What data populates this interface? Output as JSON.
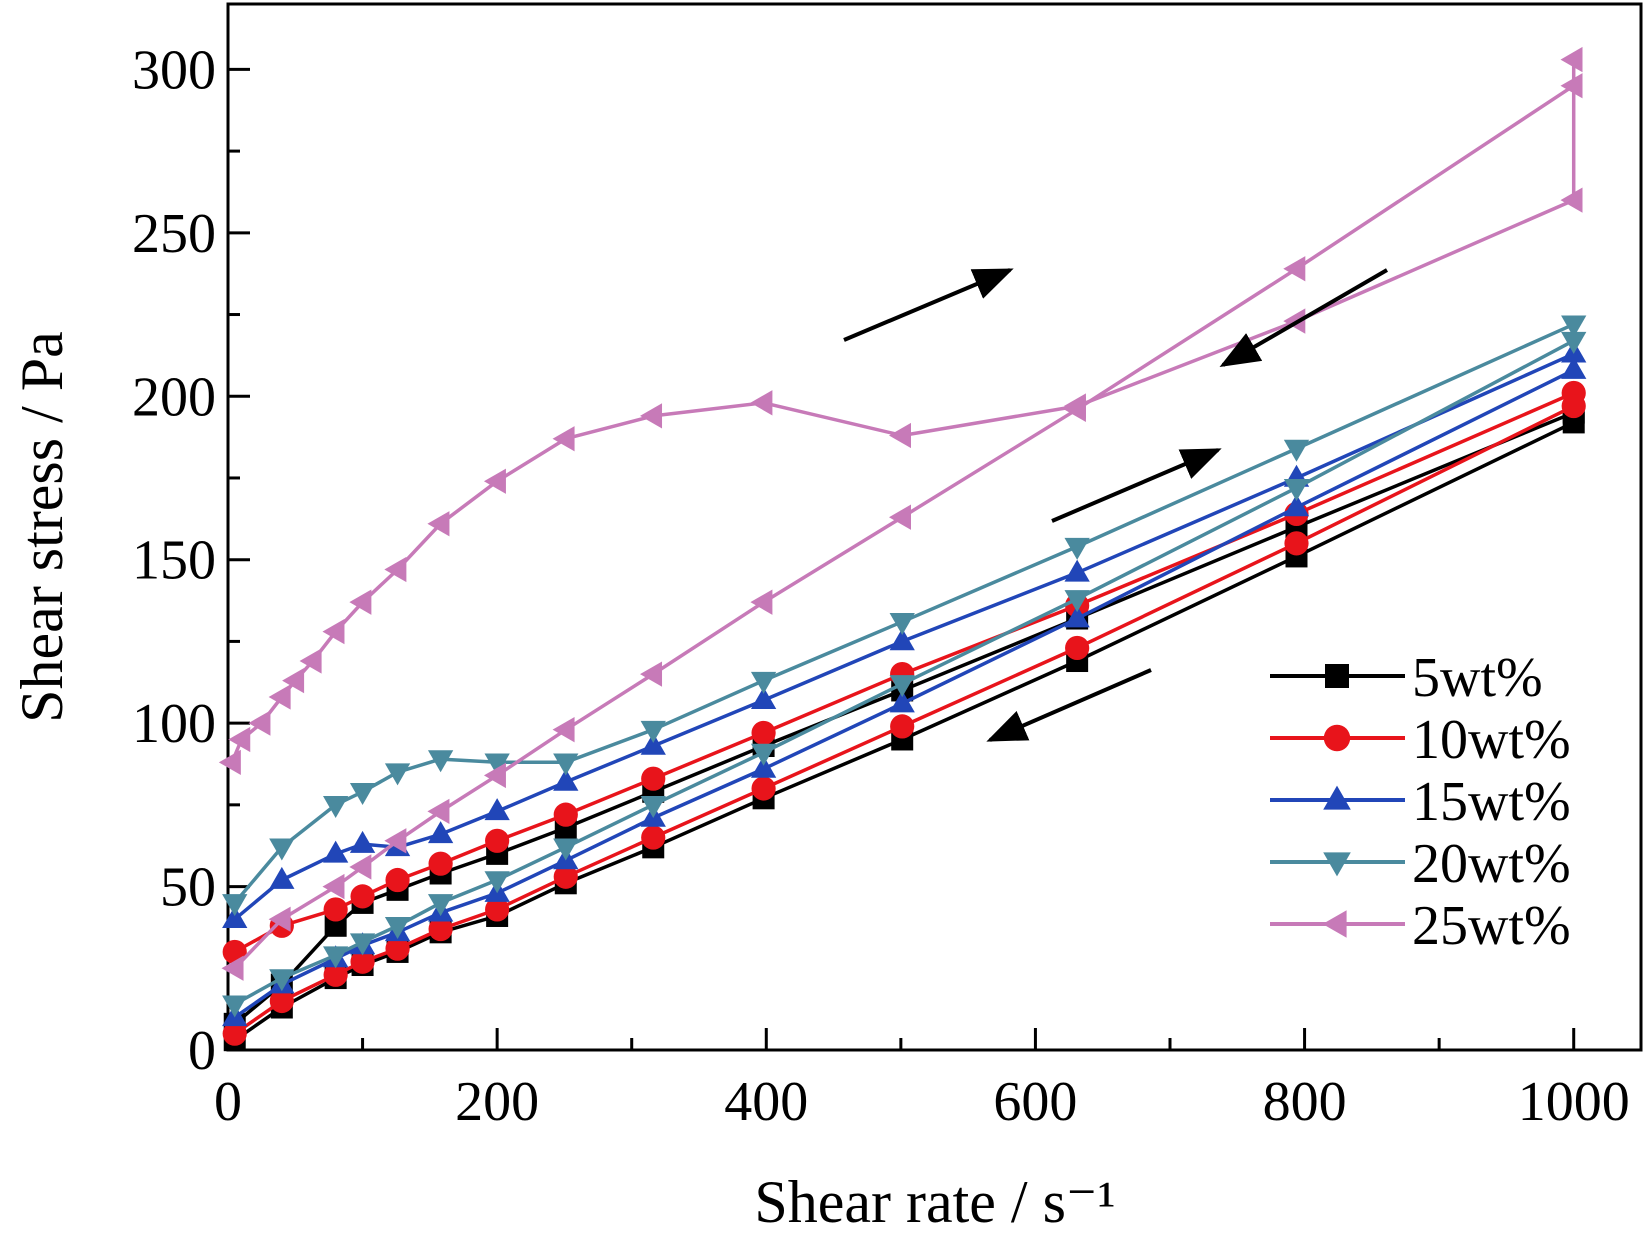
{
  "chart_data": {
    "type": "line",
    "xlabel": "Shear rate / s⁻¹",
    "ylabel": "Shear stress / Pa",
    "xlim": [
      0,
      1050
    ],
    "ylim": [
      0,
      320
    ],
    "xticks": [
      0,
      200,
      400,
      600,
      800,
      1000
    ],
    "yticks": [
      0,
      50,
      100,
      150,
      200,
      250,
      300
    ],
    "grid": false,
    "legend_position": "lower-right",
    "series": [
      {
        "name": "5wt%",
        "color": "#000000",
        "marker": "square",
        "up": [
          [
            5,
            8
          ],
          [
            40,
            20
          ],
          [
            80,
            38
          ],
          [
            100,
            45
          ],
          [
            126,
            49
          ],
          [
            158,
            54
          ],
          [
            200,
            60
          ],
          [
            251,
            68
          ],
          [
            316,
            79
          ],
          [
            398,
            93
          ],
          [
            501,
            110
          ],
          [
            631,
            132
          ],
          [
            794,
            160
          ],
          [
            1000,
            195
          ]
        ],
        "down": [
          [
            1000,
            192
          ],
          [
            794,
            151
          ],
          [
            631,
            119
          ],
          [
            501,
            95
          ],
          [
            398,
            77
          ],
          [
            316,
            62
          ],
          [
            251,
            51
          ],
          [
            200,
            41
          ],
          [
            158,
            36
          ],
          [
            126,
            30
          ],
          [
            100,
            26
          ],
          [
            80,
            22
          ],
          [
            40,
            13
          ],
          [
            5,
            3
          ]
        ]
      },
      {
        "name": "10wt%",
        "color": "#e8141b",
        "marker": "circle",
        "up": [
          [
            5,
            30
          ],
          [
            40,
            38
          ],
          [
            80,
            43
          ],
          [
            100,
            47
          ],
          [
            126,
            52
          ],
          [
            158,
            57
          ],
          [
            200,
            64
          ],
          [
            251,
            72
          ],
          [
            316,
            83
          ],
          [
            398,
            97
          ],
          [
            501,
            115
          ],
          [
            631,
            136
          ],
          [
            794,
            164
          ],
          [
            1000,
            201
          ]
        ],
        "down": [
          [
            1000,
            197
          ],
          [
            794,
            155
          ],
          [
            631,
            123
          ],
          [
            501,
            99
          ],
          [
            398,
            80
          ],
          [
            316,
            65
          ],
          [
            251,
            53
          ],
          [
            200,
            43
          ],
          [
            158,
            37
          ],
          [
            126,
            31
          ],
          [
            100,
            27
          ],
          [
            80,
            23
          ],
          [
            40,
            15
          ],
          [
            5,
            5
          ]
        ]
      },
      {
        "name": "15wt%",
        "color": "#2146b8",
        "marker": "triangle-up",
        "up": [
          [
            5,
            40
          ],
          [
            40,
            52
          ],
          [
            80,
            60
          ],
          [
            100,
            63
          ],
          [
            126,
            62
          ],
          [
            158,
            66
          ],
          [
            200,
            73
          ],
          [
            251,
            82
          ],
          [
            316,
            93
          ],
          [
            398,
            107
          ],
          [
            501,
            125
          ],
          [
            631,
            146
          ],
          [
            794,
            175
          ],
          [
            1000,
            213
          ]
        ],
        "down": [
          [
            1000,
            208
          ],
          [
            794,
            166
          ],
          [
            631,
            132
          ],
          [
            501,
            106
          ],
          [
            398,
            86
          ],
          [
            316,
            71
          ],
          [
            251,
            58
          ],
          [
            200,
            48
          ],
          [
            158,
            42
          ],
          [
            126,
            36
          ],
          [
            100,
            32
          ],
          [
            80,
            28
          ],
          [
            40,
            20
          ],
          [
            5,
            10
          ]
        ]
      },
      {
        "name": "20wt%",
        "color": "#4a8a9e",
        "marker": "triangle-down",
        "up": [
          [
            5,
            45
          ],
          [
            40,
            62
          ],
          [
            80,
            75
          ],
          [
            100,
            79
          ],
          [
            126,
            85
          ],
          [
            158,
            89
          ],
          [
            200,
            88
          ],
          [
            251,
            88
          ],
          [
            316,
            98
          ],
          [
            398,
            113
          ],
          [
            501,
            131
          ],
          [
            631,
            154
          ],
          [
            794,
            184
          ],
          [
            1000,
            222
          ]
        ],
        "down": [
          [
            1000,
            217
          ],
          [
            794,
            172
          ],
          [
            631,
            138
          ],
          [
            501,
            112
          ],
          [
            398,
            91
          ],
          [
            316,
            75
          ],
          [
            251,
            62
          ],
          [
            200,
            52
          ],
          [
            158,
            45
          ],
          [
            126,
            38
          ],
          [
            100,
            33
          ],
          [
            80,
            29
          ],
          [
            40,
            22
          ],
          [
            5,
            14
          ]
        ]
      },
      {
        "name": "25wt%",
        "color": "#c77ab8",
        "marker": "triangle-left",
        "up": [
          [
            3,
            88
          ],
          [
            10,
            95
          ],
          [
            25,
            100
          ],
          [
            40,
            108
          ],
          [
            50,
            113
          ],
          [
            63,
            119
          ],
          [
            80,
            128
          ],
          [
            100,
            137
          ],
          [
            126,
            147
          ],
          [
            158,
            161
          ],
          [
            200,
            174
          ],
          [
            251,
            187
          ],
          [
            316,
            194
          ],
          [
            398,
            198
          ],
          [
            501,
            188
          ],
          [
            631,
            197
          ],
          [
            794,
            223
          ],
          [
            1000,
            260
          ],
          [
            1000,
            303
          ]
        ],
        "down": [
          [
            1000,
            295
          ],
          [
            794,
            239
          ],
          [
            631,
            196
          ],
          [
            501,
            163
          ],
          [
            398,
            137
          ],
          [
            316,
            115
          ],
          [
            251,
            98
          ],
          [
            200,
            84
          ],
          [
            158,
            73
          ],
          [
            126,
            64
          ],
          [
            100,
            56
          ],
          [
            80,
            50
          ],
          [
            40,
            40
          ],
          [
            5,
            25
          ]
        ]
      }
    ]
  }
}
